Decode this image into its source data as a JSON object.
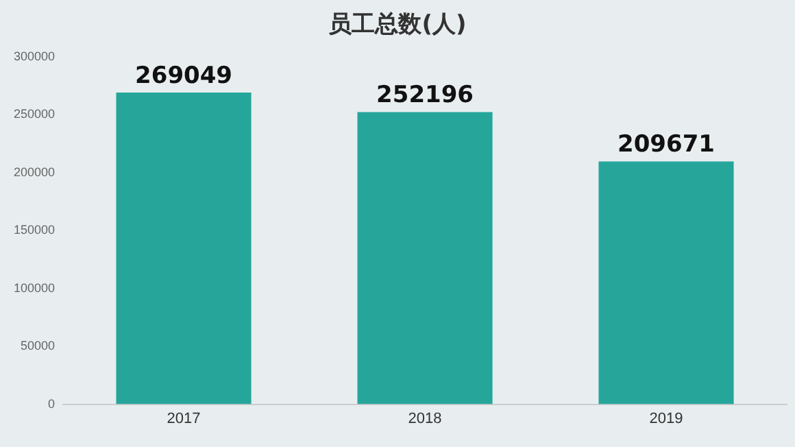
{
  "chart_data": {
    "type": "bar",
    "title": "员工总数(人)",
    "categories": [
      "2017",
      "2018",
      "2019"
    ],
    "values": [
      269049,
      252196,
      209671
    ],
    "color": "#26a69a",
    "ylim": [
      0,
      300000
    ],
    "yticks": [
      0,
      50000,
      100000,
      150000,
      200000,
      250000,
      300000
    ],
    "grid": false,
    "legend": false,
    "data_labels": true
  }
}
